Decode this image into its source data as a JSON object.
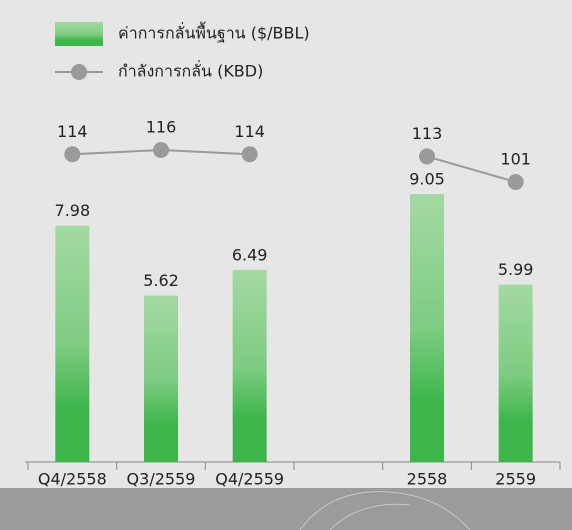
{
  "chart_data": {
    "type": "bar",
    "categories": [
      "Q4/2558",
      "Q3/2559",
      "Q4/2559",
      null,
      "2558",
      "2559"
    ],
    "series": [
      {
        "name": "ค่าการกลั่นพื้นฐาน ($/BBL)",
        "type": "bar",
        "color": "#3cb54a",
        "values": [
          7.98,
          5.62,
          6.49,
          null,
          9.05,
          5.99
        ]
      },
      {
        "name": "กำลังการกลั่น (KBD)",
        "type": "line",
        "axis": "y2",
        "color": "#9a9a9a",
        "values": [
          114,
          116,
          114,
          null,
          113,
          101
        ]
      }
    ]
  }
}
